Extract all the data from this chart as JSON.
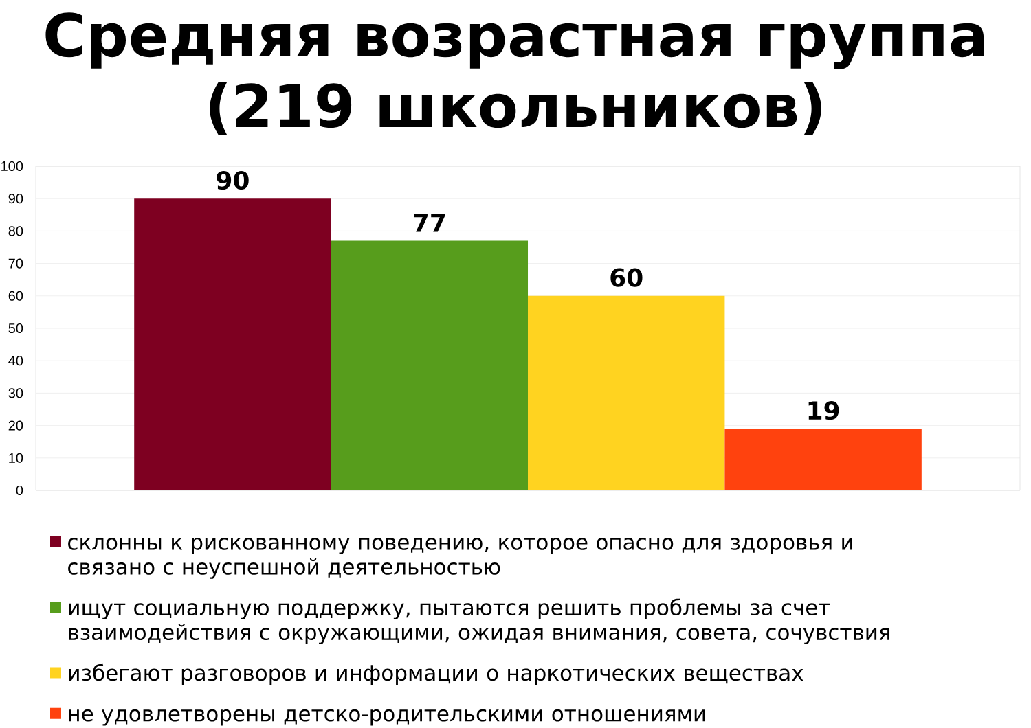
{
  "chart_data": {
    "type": "bar",
    "title": "Средняя возрастная группа (219 школьников)",
    "categories": [
      null
    ],
    "series": [
      {
        "name": "склонны к рискованному поведению, которое опасно для здоровья и связано с неуспешной деятельностью",
        "color": "#7e0021",
        "values": [
          90
        ]
      },
      {
        "name": "ищут социальную поддержку, пытаются решить проблемы за счет взаимодействия с окружающими, ожидая внимания, совета, сочувствия",
        "color": "#579d1c",
        "values": [
          77
        ]
      },
      {
        "name": "избегают разговоров и информации о наркотических веществах",
        "color": "#ffd320",
        "values": [
          60
        ]
      },
      {
        "name": "не удовлетворены детско-родительскими отношениями",
        "color": "#ff420e",
        "values": [
          19
        ]
      }
    ],
    "ylim": [
      0,
      100
    ],
    "yticks": [
      0,
      10,
      20,
      30,
      40,
      50,
      60,
      70,
      80,
      90,
      100
    ],
    "grid": "y",
    "legend": "bottom",
    "data_labels": true,
    "tick_labels": "y"
  }
}
